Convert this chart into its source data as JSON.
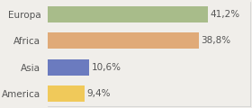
{
  "categories": [
    "Europa",
    "Africa",
    "Asia",
    "America"
  ],
  "values": [
    41.2,
    38.8,
    10.6,
    9.4
  ],
  "labels": [
    "41,2%",
    "38,8%",
    "10,6%",
    "9,4%"
  ],
  "bar_colors": [
    "#a8bc8a",
    "#e0aa78",
    "#6b7bbf",
    "#f0c95a"
  ],
  "background_color": "#f0eeea",
  "xlim": [
    0,
    52
  ],
  "bar_height": 0.62,
  "label_fontsize": 7.5,
  "category_fontsize": 7.5,
  "label_color": "#555555",
  "spine_color": "#cccccc"
}
